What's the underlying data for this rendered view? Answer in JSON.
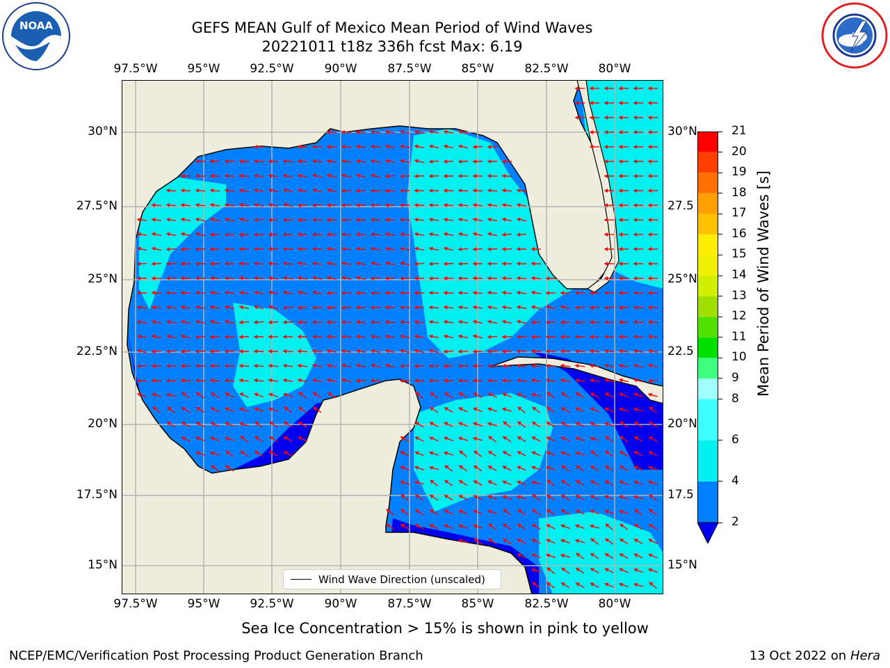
{
  "title": {
    "line1": "GEFS MEAN Gulf of Mexico Mean Period of Wind Waves",
    "line2": "20221011 t18z 336h fcst   Max: 6.19"
  },
  "logos": {
    "left": {
      "icon": "noaa-logo",
      "text": "NOAA",
      "ring_text": "NATIONAL OCEANIC AND ATMOSPHERIC ADMINISTRATION · U.S. DEPARTMENT OF COMMERCE"
    },
    "right": {
      "icon": "nws-logo",
      "ring_text": "NATIONAL WEATHER SERVICE"
    }
  },
  "map": {
    "lon_labels": [
      "97.5°W",
      "95°W",
      "92.5°W",
      "90°W",
      "87.5°W",
      "85°W",
      "82.5°W",
      "80°W"
    ],
    "lat_labels": [
      "30°N",
      "27.5°N",
      "25°N",
      "22.5°N",
      "20°N",
      "17.5°N",
      "15°N"
    ],
    "lat_labels_right": [
      "30°N",
      "27.5",
      "25°N",
      "22.5",
      "20°N",
      "17.5",
      "15°N"
    ],
    "legend_label": "Wind Wave Direction (unscaled)",
    "colors": {
      "land": "#efedde",
      "coast": "#000000",
      "grid": "#b4b4b4",
      "arrow": "#ff0000"
    }
  },
  "colorbar": {
    "label": "Mean Period of Wind Waves [s]",
    "ticks": [
      "21",
      "20",
      "19",
      "18",
      "17",
      "16",
      "15",
      "14",
      "13",
      "12",
      "11",
      "10",
      "9",
      "8",
      "6",
      "4",
      "2"
    ],
    "levels": [
      {
        "from": 2,
        "to": 4,
        "color": "#0080ff"
      },
      {
        "from": 4,
        "to": 6,
        "color": "#00f0f0"
      },
      {
        "from": 6,
        "to": 8,
        "color": "#40ffff"
      },
      {
        "from": 8,
        "to": 9,
        "color": "#a0ffff"
      },
      {
        "from": 9,
        "to": 10,
        "color": "#40ff80"
      },
      {
        "from": 10,
        "to": 11,
        "color": "#00e000"
      },
      {
        "from": 11,
        "to": 12,
        "color": "#50e000"
      },
      {
        "from": 12,
        "to": 13,
        "color": "#a0e000"
      },
      {
        "from": 13,
        "to": 14,
        "color": "#d0f000"
      },
      {
        "from": 14,
        "to": 15,
        "color": "#f0f000"
      },
      {
        "from": 15,
        "to": 16,
        "color": "#ffee00"
      },
      {
        "from": 16,
        "to": 17,
        "color": "#ffc000"
      },
      {
        "from": 17,
        "to": 18,
        "color": "#ffa000"
      },
      {
        "from": 18,
        "to": 19,
        "color": "#ff7000"
      },
      {
        "from": 19,
        "to": 20,
        "color": "#ff4000"
      },
      {
        "from": 20,
        "to": 21,
        "color": "#ff0000"
      }
    ],
    "under_color": "#0000ee"
  },
  "notes": {
    "sea_ice": "Sea Ice Concentration > 15% is shown in pink to yellow",
    "credit": "NCEP/EMC/Verification Post Processing Product Generation Branch",
    "date_prefix": "13 Oct 2022 on ",
    "machine": "Hera"
  }
}
